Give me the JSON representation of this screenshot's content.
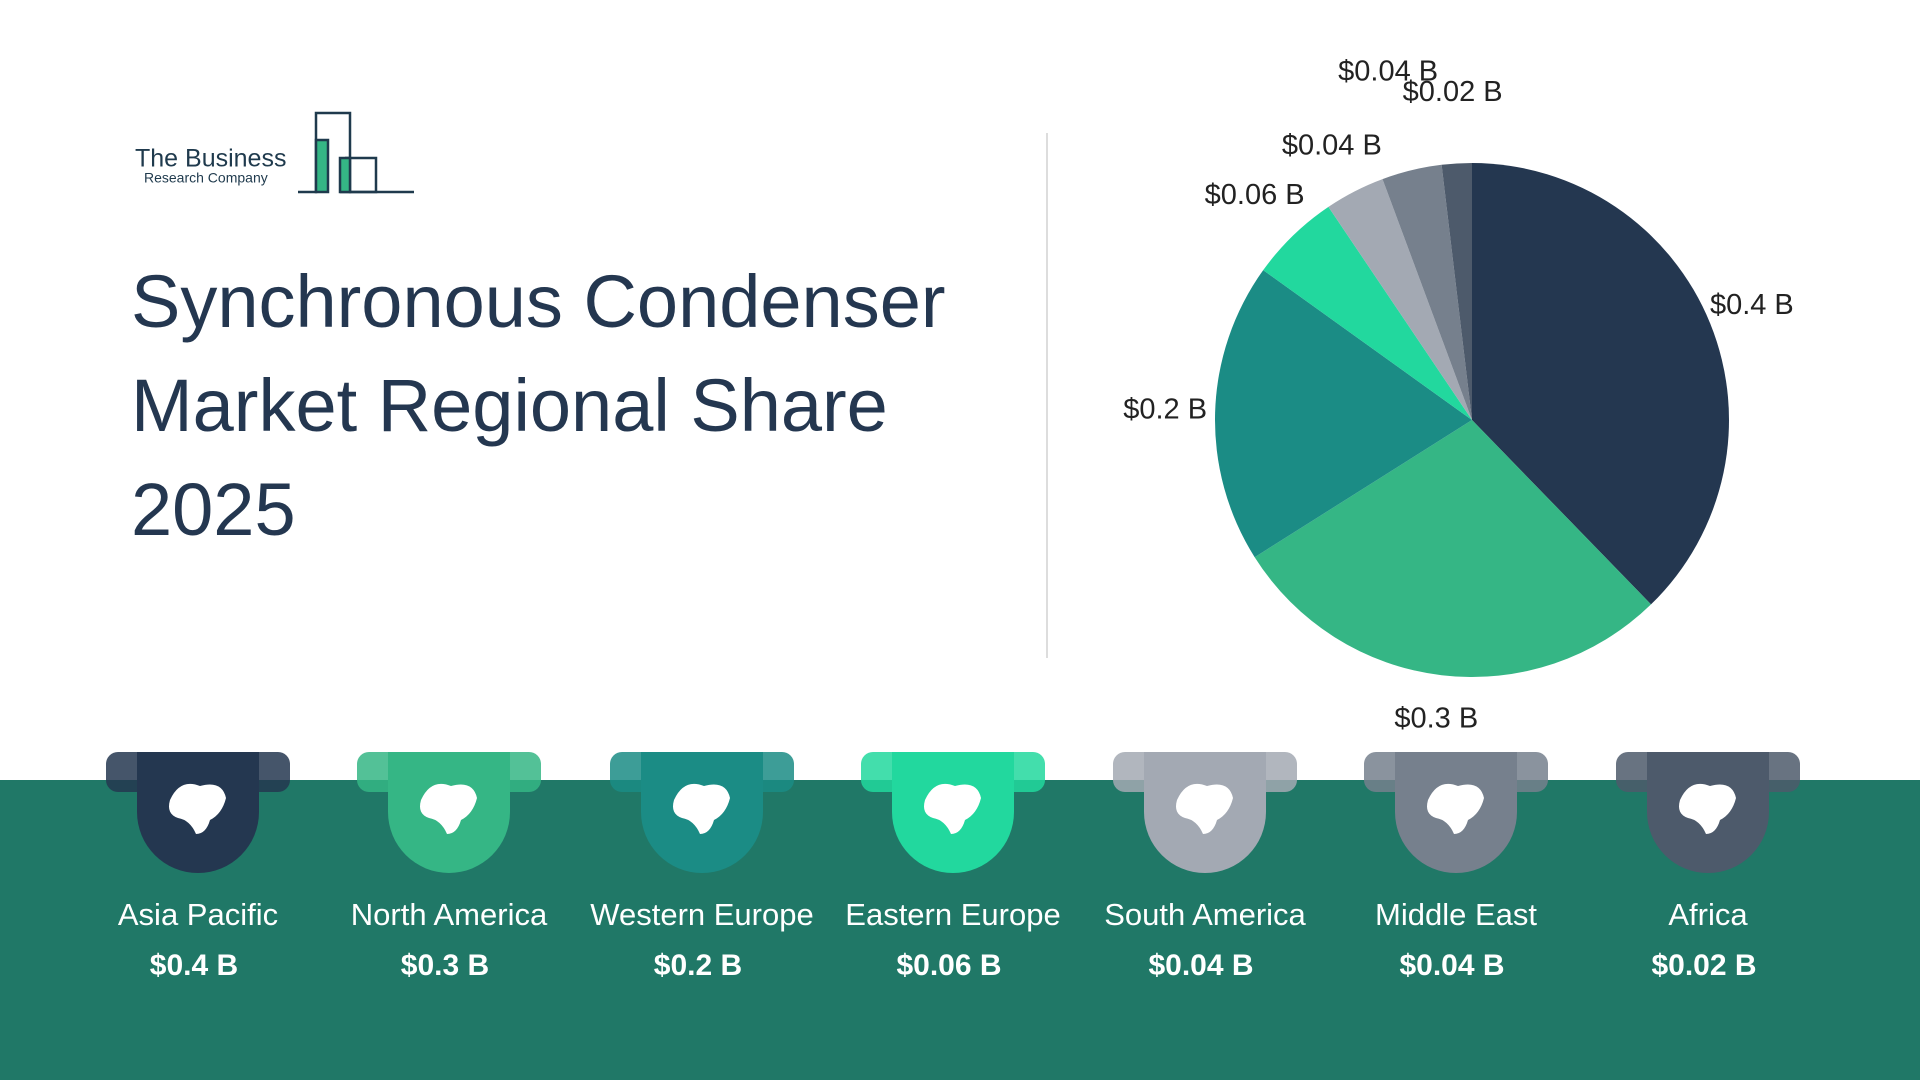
{
  "logo": {
    "line1": "The Business",
    "line2": "Research Company"
  },
  "chart_data": {
    "type": "pie",
    "title": "Synchronous Condenser Market Regional Share 2025",
    "categories": [
      "Asia Pacific",
      "North America",
      "Western Europe",
      "Eastern Europe",
      "South America",
      "Middle East",
      "Africa"
    ],
    "values": [
      0.4,
      0.3,
      0.2,
      0.06,
      0.04,
      0.04,
      0.02
    ],
    "value_labels": [
      "$0.4 B",
      "$0.3 B",
      "$0.2 B",
      "$0.06 B",
      "$0.04 B",
      "$0.04 B",
      "$0.02 B"
    ],
    "colors": [
      "#243750",
      "#35b685",
      "#1b8c85",
      "#22d89e",
      "#a3a9b3",
      "#76808d",
      "#4d5a6b"
    ]
  }
}
